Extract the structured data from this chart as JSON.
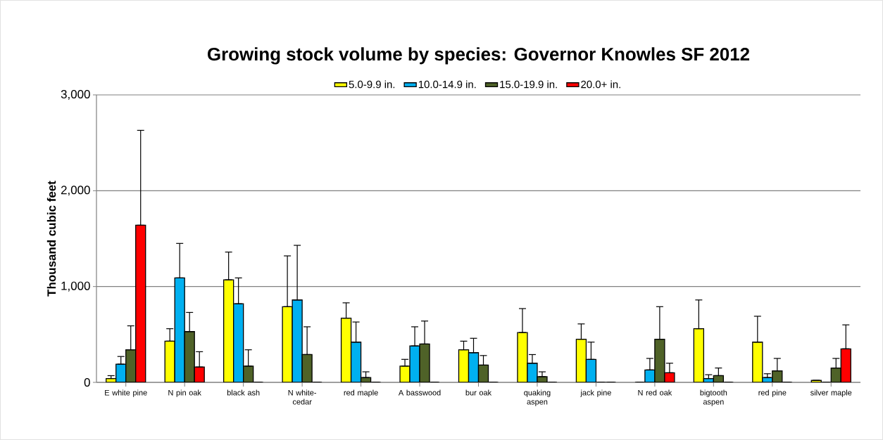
{
  "chart_data": {
    "type": "bar",
    "title": "Growing stock volume by species:  Governor Knowles SF 2012",
    "ylabel": "Thousand cubic feet",
    "categories": [
      "E white pine",
      "N pin oak",
      "black ash",
      "N white-cedar",
      "red maple",
      "A basswood",
      "bur oak",
      "quaking aspen",
      "jack pine",
      "N red oak",
      "bigtooth aspen",
      "red pine",
      "silver maple"
    ],
    "series": [
      {
        "name": "5.0-9.9 in.",
        "color": "#ffff00",
        "values": [
          40,
          430,
          1070,
          790,
          670,
          170,
          340,
          520,
          450,
          0,
          560,
          420,
          20
        ],
        "errors": [
          [
            40,
            70
          ],
          [
            430,
            560
          ],
          [
            1070,
            1360
          ],
          [
            790,
            1320
          ],
          [
            670,
            830
          ],
          [
            170,
            240
          ],
          [
            340,
            430
          ],
          [
            520,
            770
          ],
          [
            450,
            610
          ],
          null,
          [
            560,
            860
          ],
          [
            420,
            690
          ],
          null
        ]
      },
      {
        "name": "10.0-14.9 in.",
        "color": "#00b0f0",
        "values": [
          190,
          1090,
          820,
          860,
          420,
          380,
          310,
          200,
          240,
          130,
          40,
          50,
          0
        ],
        "errors": [
          [
            190,
            270
          ],
          [
            1090,
            1450
          ],
          [
            820,
            1090
          ],
          [
            860,
            1430
          ],
          [
            420,
            630
          ],
          [
            380,
            580
          ],
          [
            310,
            460
          ],
          [
            200,
            290
          ],
          [
            240,
            420
          ],
          [
            130,
            250
          ],
          [
            40,
            80
          ],
          [
            50,
            90
          ],
          null
        ]
      },
      {
        "name": "15.0-19.9 in.",
        "color": "#4f6228",
        "values": [
          340,
          530,
          170,
          290,
          50,
          400,
          180,
          60,
          0,
          450,
          70,
          120,
          150
        ],
        "errors": [
          [
            340,
            590
          ],
          [
            530,
            730
          ],
          [
            170,
            340
          ],
          [
            290,
            580
          ],
          [
            50,
            110
          ],
          [
            400,
            640
          ],
          [
            180,
            280
          ],
          [
            60,
            110
          ],
          null,
          [
            450,
            790
          ],
          [
            70,
            150
          ],
          [
            120,
            250
          ],
          [
            150,
            250
          ]
        ]
      },
      {
        "name": "20.0+ in.",
        "color": "#ff0000",
        "values": [
          1640,
          160,
          0,
          0,
          0,
          0,
          0,
          0,
          0,
          100,
          0,
          0,
          350
        ],
        "errors": [
          [
            1640,
            2630
          ],
          [
            160,
            320
          ],
          null,
          null,
          null,
          null,
          null,
          null,
          null,
          [
            100,
            200
          ],
          null,
          null,
          [
            350,
            600
          ]
        ]
      }
    ],
    "ylim": [
      0,
      3000
    ],
    "yticks": [
      0,
      {
        "value": 1000,
        "label": "1,000"
      },
      {
        "value": 2000,
        "label": "2,000"
      },
      {
        "value": 3000,
        "label": "3,000"
      }
    ],
    "grid": "y",
    "legend": "top"
  }
}
